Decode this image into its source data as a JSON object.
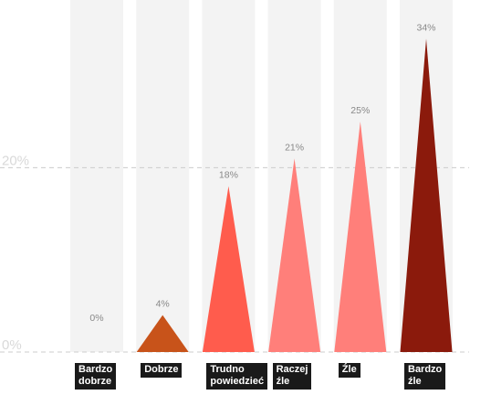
{
  "chart_data": {
    "type": "bar",
    "title": "",
    "xlabel": "",
    "ylabel": "",
    "ylim": [
      0,
      38
    ],
    "yticks": [
      {
        "value": 0,
        "label": "0%"
      },
      {
        "value": 20,
        "label": "20%"
      }
    ],
    "grid": true,
    "categories": [
      "Bardzo\ndobrze",
      "Dobrze",
      "Trudno\npowiedzieć",
      "Raczej\nźle",
      "Źle",
      "Bardzo\nźle"
    ],
    "values": [
      0,
      4,
      18,
      21,
      25,
      34
    ],
    "value_labels": [
      "0%",
      "4%",
      "18%",
      "21%",
      "25%",
      "34%"
    ],
    "colors": [
      "#c8c8c8",
      "#c8531a",
      "#ff5c4d",
      "#ff7f7a",
      "#ff7f7a",
      "#8b1a0c"
    ],
    "column_background": "#f3f3f3",
    "gridline_color": "#cccccc",
    "tick_label_color": "#d9d9d9",
    "value_label_color": "#888888"
  }
}
